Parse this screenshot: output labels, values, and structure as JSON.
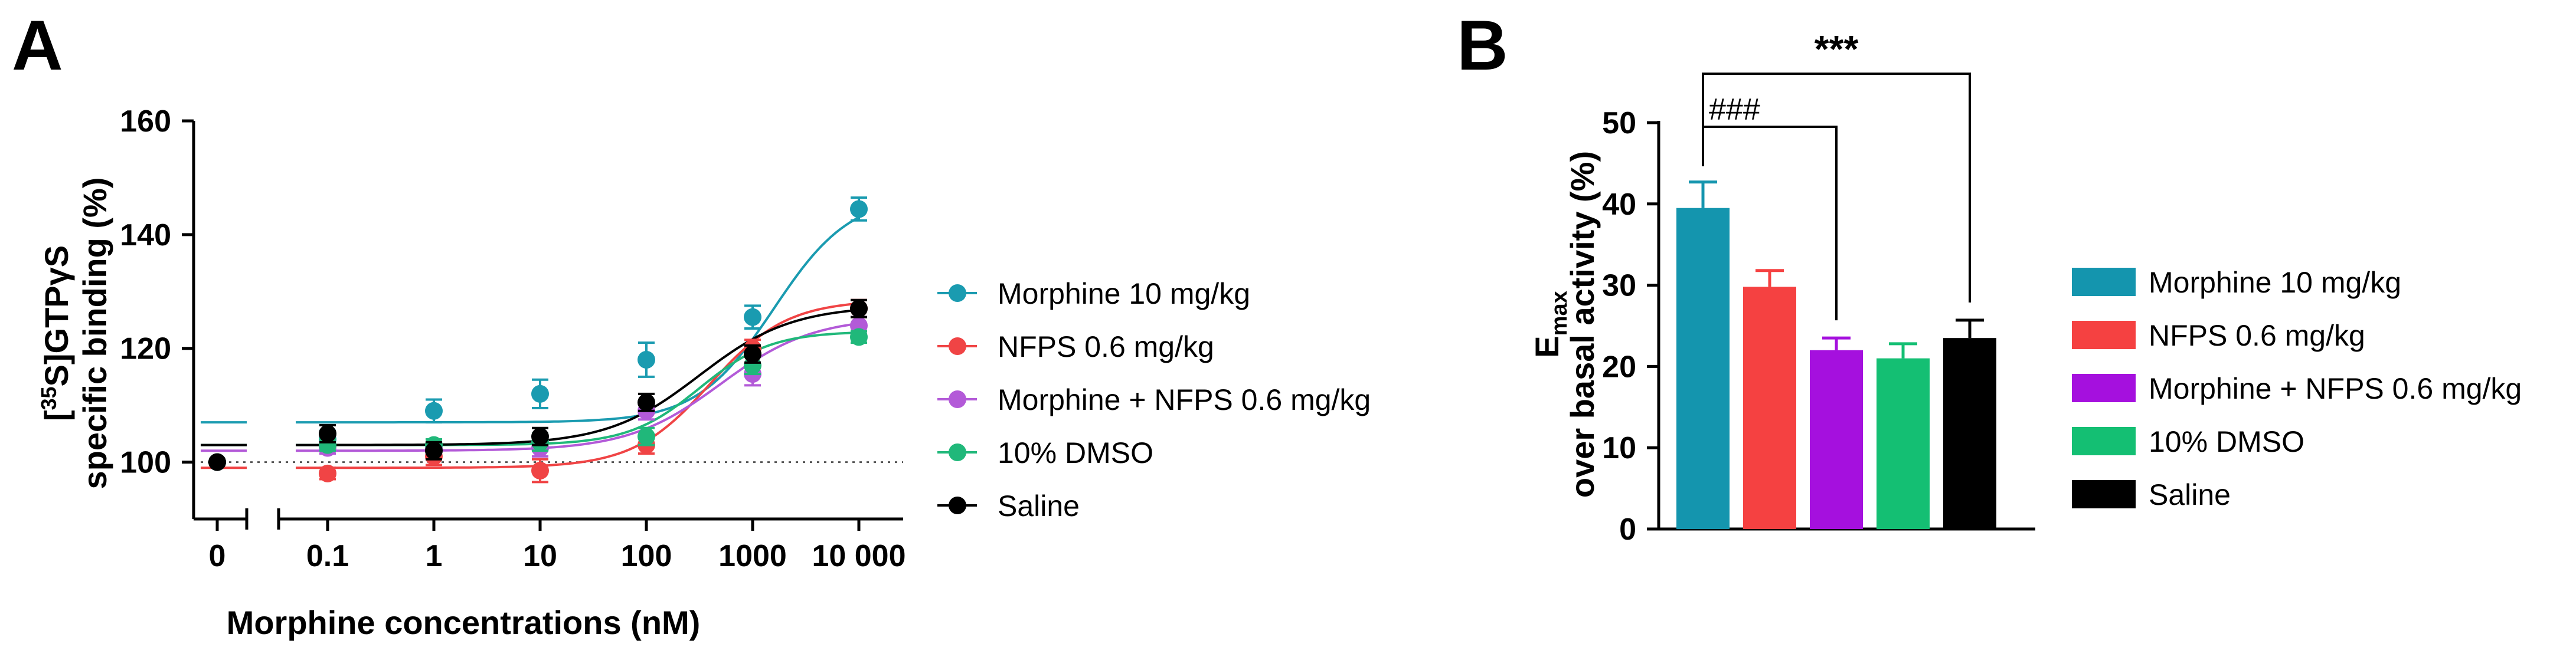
{
  "panel_a": {
    "letter": "A",
    "chart_data": {
      "type": "line",
      "xlabel": "Morphine concentrations (nM)",
      "ylabel_line1": "[35S]GTPγS",
      "ylabel_line2": "specific binding (%)",
      "ylim": [
        90,
        160
      ],
      "yticks": [
        100,
        120,
        140,
        160
      ],
      "xticks": [
        "0",
        "0.1",
        "1",
        "10",
        "100",
        "1000",
        "10 000"
      ],
      "xscale": "log, with broken axis separating 0",
      "reference_line_y": 100,
      "legend_position": "right",
      "series": [
        {
          "name": "Morphine 10 mg/kg",
          "color": "#1a9bb0",
          "zero": {
            "y": 100,
            "err": 0
          },
          "points": [
            {
              "x": 0.1,
              "y": 104,
              "err": 1.5
            },
            {
              "x": 1,
              "y": 109,
              "err": 2
            },
            {
              "x": 10,
              "y": 112,
              "err": 2.5
            },
            {
              "x": 100,
              "y": 118,
              "err": 3
            },
            {
              "x": 1000,
              "y": 125.5,
              "err": 2
            },
            {
              "x": 10000,
              "y": 144.5,
              "err": 2
            }
          ],
          "fit": {
            "bottom": 107,
            "top": 147,
            "logec50": 3.2,
            "hill": 1.2
          }
        },
        {
          "name": "NFPS 0.6 mg/kg",
          "color": "#f04445",
          "zero": {
            "y": 100,
            "err": 0
          },
          "points": [
            {
              "x": 0.1,
              "y": 98,
              "err": 1
            },
            {
              "x": 1,
              "y": 101,
              "err": 1.5
            },
            {
              "x": 10,
              "y": 98.5,
              "err": 2
            },
            {
              "x": 100,
              "y": 103,
              "err": 1.5
            },
            {
              "x": 1000,
              "y": 120,
              "err": 1.5
            },
            {
              "x": 10000,
              "y": 127,
              "err": 1.5
            }
          ],
          "fit": {
            "bottom": 99,
            "top": 128.5,
            "logec50": 2.6,
            "hill": 1.2
          }
        },
        {
          "name": "Morphine + NFPS 0.6 mg/kg",
          "color": "#b35ad8",
          "zero": {
            "y": 100,
            "err": 0
          },
          "points": [
            {
              "x": 0.1,
              "y": 102.5,
              "err": 1
            },
            {
              "x": 1,
              "y": 102.5,
              "err": 1
            },
            {
              "x": 10,
              "y": 102.5,
              "err": 1.5
            },
            {
              "x": 100,
              "y": 109,
              "err": 1.5
            },
            {
              "x": 1000,
              "y": 115.5,
              "err": 2
            },
            {
              "x": 10000,
              "y": 124,
              "err": 1.5
            }
          ],
          "fit": {
            "bottom": 102,
            "top": 125.5,
            "logec50": 2.7,
            "hill": 1.0
          }
        },
        {
          "name": "10% DMSO",
          "color": "#20b87a",
          "zero": {
            "y": 100,
            "err": 0
          },
          "points": [
            {
              "x": 0.1,
              "y": 103,
              "err": 1
            },
            {
              "x": 1,
              "y": 103,
              "err": 1
            },
            {
              "x": 10,
              "y": 103.5,
              "err": 1.5
            },
            {
              "x": 100,
              "y": 104.5,
              "err": 1.5
            },
            {
              "x": 1000,
              "y": 117,
              "err": 1.5
            },
            {
              "x": 10000,
              "y": 122,
              "err": 1
            }
          ],
          "fit": {
            "bottom": 103,
            "top": 123,
            "logec50": 2.5,
            "hill": 1.3
          }
        },
        {
          "name": "Saline",
          "color": "#000000",
          "zero": {
            "y": 100,
            "err": 0
          },
          "points": [
            {
              "x": 0.1,
              "y": 105,
              "err": 1.5
            },
            {
              "x": 1,
              "y": 102,
              "err": 1.5
            },
            {
              "x": 10,
              "y": 104.5,
              "err": 1.5
            },
            {
              "x": 100,
              "y": 110.5,
              "err": 1.5
            },
            {
              "x": 1000,
              "y": 119,
              "err": 1.5
            },
            {
              "x": 10000,
              "y": 127,
              "err": 1.5
            }
          ],
          "fit": {
            "bottom": 103,
            "top": 127.5,
            "logec50": 2.5,
            "hill": 1.0
          }
        }
      ]
    }
  },
  "panel_b": {
    "letter": "B",
    "chart_data": {
      "type": "bar",
      "ylabel_main": "E",
      "ylabel_sub": "max",
      "ylabel_line2": "over basal activity (%)",
      "ylim": [
        0,
        50
      ],
      "yticks": [
        0,
        10,
        20,
        30,
        40,
        50
      ],
      "legend_position": "right",
      "categories": [
        "Morphine 10 mg/kg",
        "NFPS 0.6 mg/kg",
        "Morphine + NFPS 0.6 mg/kg",
        "10% DMSO",
        "Saline"
      ],
      "values": [
        39.5,
        29.8,
        22,
        21,
        23.5
      ],
      "errors": [
        3.2,
        2,
        1.5,
        1.8,
        2.2
      ],
      "colors": [
        "#1495ae",
        "#f54141",
        "#a510de",
        "#14bf73",
        "#000000"
      ],
      "significance": [
        {
          "label": "###",
          "from": 0,
          "to": 2
        },
        {
          "label": "***",
          "from": 0,
          "to": 4
        }
      ]
    }
  }
}
